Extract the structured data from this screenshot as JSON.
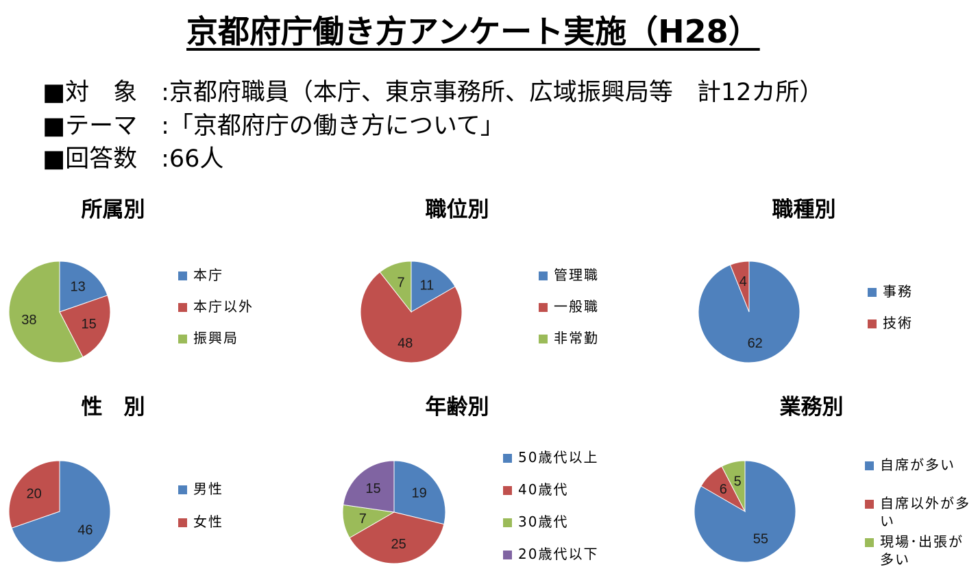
{
  "title": "京都府庁働き方アンケート実施（H28）",
  "info": [
    "■対　象　:京都府職員（本庁、東京事務所、広域振興局等　計12カ所）",
    "■テーマ　:「京都府庁の働き方について」",
    "■回答数　:66人"
  ],
  "colors": {
    "blue": "#4F81BD",
    "red": "#C0504D",
    "green": "#9BBB59",
    "purple": "#8064A2"
  },
  "chart_data": [
    {
      "type": "pie",
      "title": "所属別",
      "categories": [
        "本庁",
        "本庁以外",
        "振興局"
      ],
      "values": [
        13,
        15,
        38
      ],
      "colors": [
        "#4F81BD",
        "#C0504D",
        "#9BBB59"
      ]
    },
    {
      "type": "pie",
      "title": "職位別",
      "categories": [
        "管理職",
        "一般職",
        "非常勤"
      ],
      "values": [
        11,
        48,
        7
      ],
      "colors": [
        "#4F81BD",
        "#C0504D",
        "#9BBB59"
      ]
    },
    {
      "type": "pie",
      "title": "職種別",
      "categories": [
        "事務",
        "技術"
      ],
      "values": [
        62,
        4
      ],
      "colors": [
        "#4F81BD",
        "#C0504D"
      ]
    },
    {
      "type": "pie",
      "title": "性　別",
      "categories": [
        "男性",
        "女性"
      ],
      "values": [
        46,
        20
      ],
      "colors": [
        "#4F81BD",
        "#C0504D"
      ]
    },
    {
      "type": "pie",
      "title": "年齢別",
      "categories": [
        "50歳代以上",
        "40歳代",
        "30歳代",
        "20歳代以下"
      ],
      "values": [
        19,
        25,
        7,
        15
      ],
      "colors": [
        "#4F81BD",
        "#C0504D",
        "#9BBB59",
        "#8064A2"
      ]
    },
    {
      "type": "pie",
      "title": "業務別",
      "categories": [
        "自席が多い",
        "自席以外が多い",
        "現場･出張が多い"
      ],
      "values": [
        55,
        6,
        5
      ],
      "colors": [
        "#4F81BD",
        "#C0504D",
        "#9BBB59"
      ]
    }
  ]
}
